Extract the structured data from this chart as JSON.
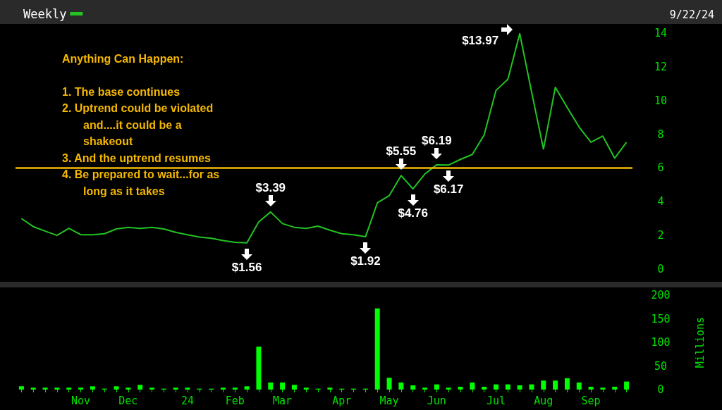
{
  "chart_data": [
    {
      "type": "line",
      "subtitle": "9/22/24",
      "annotations": [
        "Anything Can Happen:",
        "1. The base continues",
        "2. Uptrend could be violated and....it could be a shakeout",
        "3. And the uptrend resumes",
        "4. Be prepared to wait...for as long as it takes"
      ],
      "categories": [
        null,
        null,
        null,
        null,
        null,
        null,
        null,
        null,
        null,
        null,
        null,
        null,
        null,
        null,
        null,
        null,
        null,
        null,
        null,
        null,
        null,
        null,
        null,
        null,
        null,
        null,
        null,
        null,
        null,
        null,
        null,
        null,
        null,
        null,
        null,
        null,
        null,
        null,
        null,
        null,
        null,
        null,
        null,
        null,
        null,
        null,
        null,
        null,
        null,
        null,
        null,
        null
      ],
      "series": [
        {
          "name": "Weekly",
          "color": "#22c322",
          "values": [
            3.0,
            2.52,
            2.25,
            2.0,
            2.42,
            2.04,
            2.04,
            2.1,
            2.38,
            2.48,
            2.41,
            2.48,
            2.38,
            2.18,
            2.04,
            1.9,
            1.83,
            1.69,
            1.59,
            1.56,
            2.8,
            3.39,
            2.7,
            2.48,
            2.41,
            2.55,
            2.31,
            2.1,
            2.04,
            1.92,
            3.93,
            4.36,
            5.55,
            4.76,
            5.64,
            6.19,
            6.17,
            6.51,
            6.8,
            7.96,
            10.6,
            11.26,
            13.97,
            10.5,
            7.12,
            10.78,
            9.59,
            8.43,
            7.53,
            7.89,
            6.58,
            7.53
          ],
          "value_labels": [
            null,
            null,
            null,
            null,
            null,
            null,
            null,
            null,
            null,
            null,
            null,
            null,
            null,
            null,
            null,
            null,
            null,
            null,
            null,
            "$1.56",
            null,
            "$3.39",
            null,
            null,
            null,
            null,
            null,
            null,
            null,
            "$1.92",
            null,
            null,
            "$5.55",
            "$4.76",
            null,
            "$6.19",
            "$6.17",
            null,
            null,
            null,
            null,
            null,
            "$13.97",
            null,
            null,
            null,
            null,
            null,
            null,
            null,
            null,
            null
          ]
        }
      ],
      "ylim": [
        0,
        14
      ],
      "yticks": [
        0,
        2,
        4,
        6,
        8,
        10,
        12,
        14
      ],
      "ref_lines": [
        {
          "axis": "y",
          "value": 6,
          "color": "#f5b800"
        }
      ],
      "tick_labels": "y",
      "grid": false,
      "legend": "top left",
      "marker": "none"
    },
    {
      "type": "bar",
      "ylabel": "Millions",
      "categories": [
        null,
        null,
        null,
        null,
        null,
        "Nov",
        null,
        null,
        null,
        "Dec",
        null,
        null,
        null,
        null,
        "24",
        null,
        null,
        null,
        "Feb",
        null,
        null,
        null,
        "Mar",
        null,
        null,
        null,
        null,
        "Apr",
        null,
        null,
        null,
        "May",
        null,
        null,
        null,
        "Jun",
        null,
        null,
        null,
        null,
        "Jul",
        null,
        null,
        null,
        "Aug",
        null,
        null,
        null,
        "Sep",
        null,
        null,
        null
      ],
      "values": [
        7,
        4,
        4,
        4,
        4,
        4,
        7,
        2,
        7,
        4,
        10,
        4,
        2,
        4,
        4,
        2,
        2,
        4,
        4,
        7,
        91,
        15,
        15,
        10,
        4,
        2,
        4,
        2,
        2,
        2,
        172,
        25,
        15,
        9,
        4,
        11,
        4,
        6,
        15,
        6,
        11,
        11,
        9,
        11,
        19,
        19,
        24,
        15,
        6,
        4,
        6,
        17
      ],
      "color": "#00ff00",
      "ylim": [
        0,
        200
      ],
      "yticks": [
        0,
        50,
        100,
        150,
        200
      ],
      "grid": false
    }
  ]
}
